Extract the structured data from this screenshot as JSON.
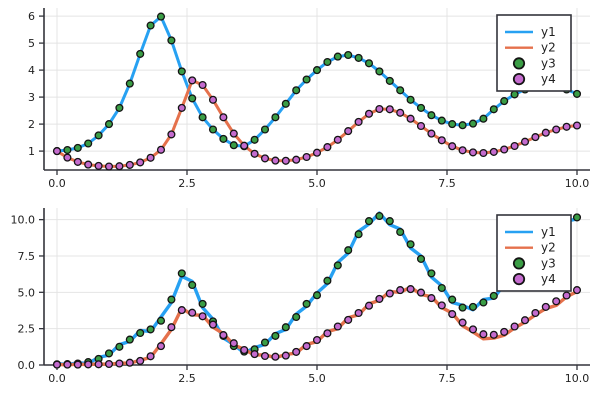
{
  "figure": {
    "background": "#ffffff",
    "colors": {
      "y1_line": "#27a1f2",
      "y2_line": "#e5714c",
      "y3_fill": "#3a9d45",
      "y4_fill": "#c46bce",
      "marker_stroke": "#141414",
      "grid": "#e4e4e4",
      "axis": "#33343b",
      "tick_label": "#1f1f1f",
      "legend_border": "#33343b",
      "legend_background": "#ffffff"
    }
  },
  "chart_data": [
    {
      "type": "line+scatter",
      "position": "top",
      "xlim": [
        -0.25,
        10.25
      ],
      "ylim": [
        0.3,
        6.3
      ],
      "grid": true,
      "xticks": {
        "values": [
          0,
          2.5,
          5,
          7.5,
          10
        ],
        "labels": [
          "0.0",
          "2.5",
          "5.0",
          "7.5",
          "10.0"
        ]
      },
      "yticks": {
        "values": [
          1,
          2,
          3,
          4,
          5,
          6
        ],
        "labels": [
          "1",
          "2",
          "3",
          "4",
          "5",
          "6"
        ]
      },
      "legend": {
        "position": "top-right",
        "entries": [
          "y1",
          "y2",
          "y3",
          "y4"
        ]
      },
      "x": [
        0,
        0.2,
        0.4,
        0.6,
        0.8,
        1,
        1.2,
        1.4,
        1.6,
        1.8,
        2,
        2.2,
        2.4,
        2.6,
        2.8,
        3,
        3.2,
        3.4,
        3.6,
        3.8,
        4,
        4.2,
        4.4,
        4.6,
        4.8,
        5,
        5.2,
        5.4,
        5.6,
        5.8,
        6,
        6.2,
        6.4,
        6.6,
        6.8,
        7,
        7.2,
        7.4,
        7.6,
        7.8,
        8,
        8.2,
        8.4,
        8.6,
        8.8,
        9,
        9.2,
        9.4,
        9.6,
        9.8,
        10
      ],
      "series": [
        {
          "name": "y1",
          "kind": "line",
          "color": "#27a1f2",
          "values": [
            1.0,
            1.04,
            1.12,
            1.28,
            1.58,
            2.0,
            2.6,
            3.5,
            4.6,
            5.65,
            5.98,
            5.1,
            3.95,
            2.95,
            2.25,
            1.8,
            1.45,
            1.22,
            1.18,
            1.42,
            1.8,
            2.25,
            2.75,
            3.25,
            3.65,
            4.0,
            4.3,
            4.5,
            4.56,
            4.45,
            4.25,
            3.95,
            3.6,
            3.25,
            2.9,
            2.6,
            2.33,
            2.13,
            2.0,
            1.96,
            2.02,
            2.2,
            2.55,
            2.85,
            3.1,
            3.28,
            3.4,
            3.44,
            3.4,
            3.28,
            3.12
          ]
        },
        {
          "name": "y2",
          "kind": "line",
          "color": "#e5714c",
          "values": [
            1.0,
            0.76,
            0.6,
            0.5,
            0.45,
            0.43,
            0.44,
            0.49,
            0.58,
            0.75,
            1.05,
            1.62,
            2.6,
            3.62,
            3.45,
            2.9,
            2.25,
            1.65,
            1.2,
            0.9,
            0.73,
            0.65,
            0.64,
            0.68,
            0.78,
            0.94,
            1.15,
            1.42,
            1.74,
            2.08,
            2.38,
            2.56,
            2.55,
            2.42,
            2.2,
            1.93,
            1.65,
            1.4,
            1.18,
            1.03,
            0.95,
            0.93,
            0.97,
            1.06,
            1.19,
            1.35,
            1.52,
            1.68,
            1.8,
            1.9,
            1.95
          ]
        },
        {
          "name": "y3",
          "kind": "scatter",
          "color": "#3a9d45",
          "values": [
            1.0,
            1.04,
            1.12,
            1.28,
            1.58,
            2.0,
            2.6,
            3.5,
            4.6,
            5.65,
            5.98,
            5.1,
            3.95,
            2.95,
            2.25,
            1.8,
            1.45,
            1.22,
            1.18,
            1.42,
            1.8,
            2.25,
            2.75,
            3.25,
            3.65,
            4.0,
            4.3,
            4.5,
            4.56,
            4.45,
            4.25,
            3.95,
            3.6,
            3.25,
            2.9,
            2.6,
            2.33,
            2.13,
            2.0,
            1.96,
            2.02,
            2.2,
            2.55,
            2.85,
            3.1,
            3.28,
            3.4,
            3.44,
            3.4,
            3.28,
            3.12
          ]
        },
        {
          "name": "y4",
          "kind": "scatter",
          "color": "#c46bce",
          "values": [
            1.0,
            0.76,
            0.6,
            0.5,
            0.45,
            0.43,
            0.44,
            0.49,
            0.58,
            0.75,
            1.05,
            1.62,
            2.6,
            3.62,
            3.45,
            2.9,
            2.25,
            1.65,
            1.2,
            0.9,
            0.73,
            0.65,
            0.64,
            0.68,
            0.78,
            0.94,
            1.15,
            1.42,
            1.74,
            2.08,
            2.38,
            2.56,
            2.55,
            2.42,
            2.2,
            1.93,
            1.65,
            1.4,
            1.18,
            1.03,
            0.95,
            0.93,
            0.97,
            1.06,
            1.19,
            1.35,
            1.52,
            1.68,
            1.8,
            1.9,
            1.95
          ]
        }
      ]
    },
    {
      "type": "line+scatter",
      "position": "bottom",
      "xlim": [
        -0.25,
        10.25
      ],
      "ylim": [
        0,
        10.8
      ],
      "grid": true,
      "xticks": {
        "values": [
          0,
          2.5,
          5,
          7.5,
          10
        ],
        "labels": [
          "0.0",
          "2.5",
          "5.0",
          "7.5",
          "10.0"
        ]
      },
      "yticks": {
        "values": [
          0,
          2.5,
          5,
          7.5,
          10
        ],
        "labels": [
          "0.0",
          "2.5",
          "5.0",
          "7.5",
          "10.0"
        ]
      },
      "legend": {
        "position": "top-right",
        "entries": [
          "y1",
          "y2",
          "y3",
          "y4"
        ]
      },
      "x": [
        0,
        0.2,
        0.4,
        0.6,
        0.8,
        1,
        1.2,
        1.4,
        1.6,
        1.8,
        2,
        2.2,
        2.4,
        2.6,
        2.8,
        3,
        3.2,
        3.4,
        3.6,
        3.8,
        4,
        4.2,
        4.4,
        4.6,
        4.8,
        5,
        5.2,
        5.4,
        5.6,
        5.8,
        6,
        6.2,
        6.4,
        6.6,
        6.8,
        7,
        7.2,
        7.4,
        7.6,
        7.8,
        8,
        8.2,
        8.4,
        8.6,
        8.8,
        9,
        9.2,
        9.4,
        9.6,
        9.8,
        10
      ],
      "series": [
        {
          "name": "y1",
          "kind": "line",
          "color": "#27a1f2",
          "values": [
            0.1,
            0.02,
            0.15,
            0.1,
            0.52,
            0.68,
            1.4,
            1.62,
            2.38,
            2.3,
            3.3,
            4.3,
            6.1,
            5.75,
            3.95,
            3.15,
            1.85,
            1.42,
            0.82,
            1.2,
            1.42,
            2.15,
            2.45,
            3.5,
            4.05,
            4.95,
            5.6,
            7.05,
            7.7,
            9.2,
            9.7,
            10.45,
            9.65,
            9.35,
            8.05,
            7.5,
            6.05,
            5.45,
            4.3,
            4.1,
            3.8,
            4.5,
            4.6,
            5.55,
            5.9,
            7.0,
            7.4,
            8.6,
            8.95,
            9.9,
            10.05
          ]
        },
        {
          "name": "y2",
          "kind": "line",
          "color": "#e5714c",
          "values": [
            0.05,
            0.01,
            0.06,
            0.02,
            0.08,
            0.04,
            0.14,
            0.12,
            0.32,
            0.52,
            1.45,
            2.45,
            3.9,
            3.45,
            3.42,
            2.6,
            2.15,
            1.38,
            1.08,
            0.68,
            0.7,
            0.5,
            0.72,
            0.82,
            1.42,
            1.6,
            2.3,
            2.5,
            3.25,
            3.45,
            4.2,
            4.45,
            5.05,
            5.0,
            5.35,
            4.85,
            4.7,
            3.95,
            3.58,
            2.7,
            2.28,
            1.8,
            1.85,
            2.05,
            2.55,
            2.95,
            3.45,
            3.88,
            4.1,
            4.7,
            5.05
          ]
        },
        {
          "name": "y3",
          "kind": "scatter",
          "color": "#3a9d45",
          "values": [
            0.05,
            0.06,
            0.1,
            0.2,
            0.42,
            0.8,
            1.25,
            1.75,
            2.2,
            2.45,
            3.05,
            4.5,
            6.3,
            5.5,
            4.2,
            3.0,
            2.0,
            1.3,
            0.92,
            1.08,
            1.55,
            2.0,
            2.6,
            3.3,
            4.2,
            4.8,
            5.8,
            6.85,
            7.9,
            9.0,
            9.9,
            10.25,
            9.9,
            9.15,
            8.3,
            7.3,
            6.3,
            5.3,
            4.5,
            3.95,
            4.0,
            4.3,
            4.75,
            5.35,
            6.05,
            6.8,
            7.6,
            8.4,
            9.1,
            9.75,
            10.15
          ]
        },
        {
          "name": "y4",
          "kind": "scatter",
          "color": "#c46bce",
          "values": [
            0.03,
            0.03,
            0.03,
            0.04,
            0.05,
            0.07,
            0.1,
            0.16,
            0.28,
            0.6,
            1.3,
            2.6,
            3.78,
            3.6,
            3.35,
            2.78,
            2.06,
            1.5,
            1.03,
            0.75,
            0.62,
            0.57,
            0.65,
            0.9,
            1.3,
            1.72,
            2.18,
            2.65,
            3.1,
            3.58,
            4.08,
            4.55,
            4.92,
            5.15,
            5.22,
            4.98,
            4.6,
            4.1,
            3.5,
            2.92,
            2.45,
            2.12,
            2.08,
            2.28,
            2.65,
            3.08,
            3.58,
            4.0,
            4.38,
            4.78,
            5.15
          ]
        }
      ]
    }
  ]
}
